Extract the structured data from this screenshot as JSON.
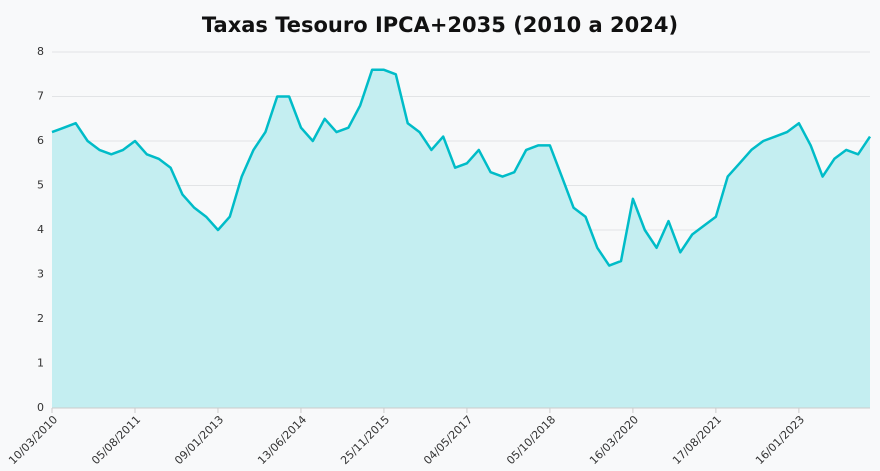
{
  "chart_data": {
    "type": "area",
    "title": "Taxas Tesouro IPCA+2035 (2010 a 2024)",
    "categories": [
      "10/03/2010",
      null,
      null,
      null,
      null,
      null,
      null,
      "05/08/2011",
      null,
      null,
      null,
      null,
      null,
      null,
      "09/01/2013",
      null,
      null,
      null,
      null,
      null,
      null,
      "13/06/2014",
      null,
      null,
      null,
      null,
      null,
      null,
      "25/11/2015",
      null,
      null,
      null,
      null,
      null,
      null,
      "04/05/2017",
      null,
      null,
      null,
      null,
      null,
      null,
      "05/10/2018",
      null,
      null,
      null,
      null,
      null,
      null,
      "16/03/2020",
      null,
      null,
      null,
      null,
      null,
      null,
      "17/08/2021",
      null,
      null,
      null,
      null,
      null,
      null,
      "16/01/2023",
      null,
      null,
      null,
      null,
      null,
      null
    ],
    "values": [
      6.2,
      6.3,
      6.4,
      6.0,
      5.8,
      5.7,
      5.8,
      6.0,
      5.7,
      5.6,
      5.4,
      4.8,
      4.5,
      4.3,
      4.0,
      4.3,
      5.2,
      5.8,
      6.2,
      7.0,
      7.0,
      6.3,
      6.0,
      6.5,
      6.2,
      6.3,
      6.8,
      7.6,
      7.6,
      7.5,
      6.4,
      6.2,
      5.8,
      6.1,
      5.4,
      5.5,
      5.8,
      5.3,
      5.2,
      5.3,
      5.8,
      5.9,
      5.9,
      5.2,
      4.5,
      4.3,
      3.6,
      3.2,
      3.3,
      4.7,
      4.0,
      3.6,
      4.2,
      3.5,
      3.9,
      4.1,
      4.3,
      5.2,
      5.5,
      5.8,
      6.0,
      6.1,
      6.2,
      6.4,
      5.9,
      5.2,
      5.6,
      5.8,
      5.7,
      6.1
    ],
    "color": "#00bcc8",
    "fill": "#c4eef1",
    "ylim": [
      0,
      8
    ],
    "yticks": [
      0,
      1,
      2,
      3,
      4,
      5,
      6,
      7,
      8
    ],
    "grid": true
  }
}
